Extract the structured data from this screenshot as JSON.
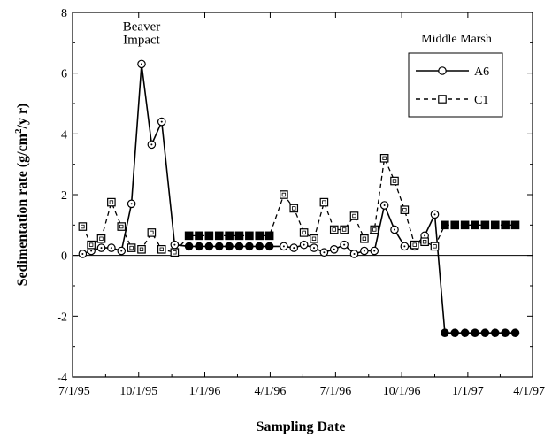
{
  "chart_data": {
    "type": "line",
    "title": "",
    "xlabel": "Sampling Date",
    "ylabel": "Sedimentation rate (g/cm²/y r)",
    "ylabel_parts": {
      "main": "Sedimentation rate (g/cm",
      "sup": "2",
      "tail": "/y r)"
    },
    "xlim": [
      "1995-07-01",
      "1997-04-01"
    ],
    "ylim": [
      -4,
      8
    ],
    "x_ticks": [
      {
        "date": "1995-07-01",
        "label": "7/1/95"
      },
      {
        "date": "1995-10-01",
        "label": "10/1/95"
      },
      {
        "date": "1996-01-01",
        "label": "1/1/96"
      },
      {
        "date": "1996-04-01",
        "label": "4/1/96"
      },
      {
        "date": "1996-07-01",
        "label": "7/1/96"
      },
      {
        "date": "1996-10-01",
        "label": "10/1/96"
      },
      {
        "date": "1997-01-01",
        "label": "1/1/97"
      },
      {
        "date": "1997-04-01",
        "label": "4/1/97"
      }
    ],
    "y_ticks": [
      {
        "value": -4,
        "label": "-4"
      },
      {
        "value": -2,
        "label": "-2"
      },
      {
        "value": 0,
        "label": "0"
      },
      {
        "value": 2,
        "label": "2"
      },
      {
        "value": 4,
        "label": "4"
      },
      {
        "value": 6,
        "label": "6"
      },
      {
        "value": 8,
        "label": "8"
      }
    ],
    "zero_line": true,
    "grid": false,
    "legend": {
      "title": "Middle Marsh",
      "position": "top-right"
    },
    "annotations": [
      {
        "lines": [
          "Beaver",
          "Impact"
        ],
        "date": "1995-10-05",
        "value": 7.4
      }
    ],
    "series": [
      {
        "name": "A6",
        "style": "solid",
        "marker": "circle",
        "x": [
          "1995-07-15",
          "1995-07-27",
          "1995-08-10",
          "1995-08-24",
          "1995-09-07",
          "1995-09-21",
          "1995-10-05",
          "1995-10-19",
          "1995-11-02",
          "1995-11-20",
          "1995-12-10",
          "1995-12-24",
          "1996-01-07",
          "1996-01-21",
          "1996-02-04",
          "1996-02-18",
          "1996-03-03",
          "1996-03-17",
          "1996-03-31",
          "1996-04-20",
          "1996-05-04",
          "1996-05-18",
          "1996-06-01",
          "1996-06-15",
          "1996-06-29",
          "1996-07-13",
          "1996-07-27",
          "1996-08-10",
          "1996-08-24",
          "1996-09-07",
          "1996-09-21",
          "1996-10-05",
          "1996-10-19",
          "1996-11-02",
          "1996-11-16",
          "1996-11-30",
          "1996-12-14",
          "1996-12-28",
          "1997-01-11",
          "1997-01-25",
          "1997-02-08",
          "1997-02-22",
          "1997-03-08"
        ],
        "values": [
          0.05,
          0.15,
          0.25,
          0.25,
          0.15,
          1.7,
          6.3,
          3.65,
          4.4,
          0.35,
          0.3,
          0.3,
          0.3,
          0.3,
          0.3,
          0.3,
          0.3,
          0.3,
          0.3,
          0.3,
          0.25,
          0.35,
          0.25,
          0.1,
          0.2,
          0.35,
          0.05,
          0.15,
          0.15,
          1.65,
          0.85,
          0.3,
          0.3,
          0.65,
          1.35,
          -2.55,
          -2.55,
          -2.55,
          -2.55,
          -2.55,
          -2.55,
          -2.55,
          -2.55
        ],
        "filled_from_index": 10,
        "filled_from_index_2": 35,
        "filled_until_index": 18
      },
      {
        "name": "C1",
        "style": "dashed",
        "marker": "square",
        "x": [
          "1995-07-15",
          "1995-07-27",
          "1995-08-10",
          "1995-08-24",
          "1995-09-07",
          "1995-09-21",
          "1995-10-05",
          "1995-10-19",
          "1995-11-02",
          "1995-11-20",
          "1995-12-10",
          "1995-12-24",
          "1996-01-07",
          "1996-01-21",
          "1996-02-04",
          "1996-02-18",
          "1996-03-03",
          "1996-03-17",
          "1996-03-31",
          "1996-04-20",
          "1996-05-04",
          "1996-05-18",
          "1996-06-01",
          "1996-06-15",
          "1996-06-29",
          "1996-07-13",
          "1996-07-27",
          "1996-08-10",
          "1996-08-24",
          "1996-09-07",
          "1996-09-21",
          "1996-10-05",
          "1996-10-19",
          "1996-11-02",
          "1996-11-16",
          "1996-11-30",
          "1996-12-14",
          "1996-12-28",
          "1997-01-11",
          "1997-01-25",
          "1997-02-08",
          "1997-02-22",
          "1997-03-08"
        ],
        "values": [
          0.95,
          0.35,
          0.55,
          1.75,
          0.95,
          0.25,
          0.2,
          0.75,
          0.2,
          0.1,
          0.65,
          0.65,
          0.65,
          0.65,
          0.65,
          0.65,
          0.65,
          0.65,
          0.65,
          2.0,
          1.55,
          0.75,
          0.55,
          1.75,
          0.85,
          0.85,
          1.3,
          0.55,
          0.85,
          3.2,
          2.45,
          1.5,
          0.35,
          0.45,
          0.3,
          1.0,
          1.0,
          1.0,
          1.0,
          1.0,
          1.0,
          1.0,
          1.0
        ],
        "filled_from_index": 10,
        "filled_until_index": 18,
        "filled_from_index_2": 35
      }
    ]
  }
}
